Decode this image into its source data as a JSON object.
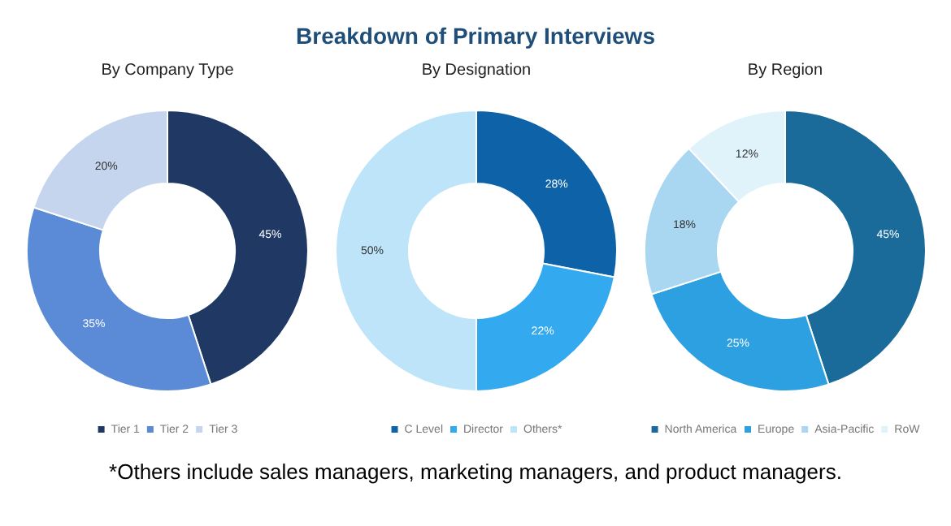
{
  "chart_data": [
    {
      "type": "donut",
      "subtitle": "By Company Type",
      "categories": [
        "Tier 1",
        "Tier 2",
        "Tier 3"
      ],
      "values": [
        45,
        35,
        20
      ],
      "value_labels": [
        "45%",
        "35%",
        "20%"
      ],
      "colors": [
        "#1f3864",
        "#5b8bd6",
        "#c5d5ee"
      ],
      "legend": "bottom"
    },
    {
      "type": "donut",
      "title": "Breakdown of Primary Interviews",
      "subtitle": "By Designation",
      "categories": [
        "C Level",
        "Director",
        "Others*"
      ],
      "values": [
        28,
        22,
        50
      ],
      "value_labels": [
        "28%",
        "22%",
        "50%"
      ],
      "colors": [
        "#0e63a8",
        "#33aaf0",
        "#bde4f8"
      ],
      "legend": "bottom",
      "annotations": [
        "*Others include sales managers, marketing managers, and product managers."
      ]
    },
    {
      "type": "donut",
      "subtitle": "By Region",
      "categories": [
        "North America",
        "Europe",
        "Asia-Pacific",
        "RoW"
      ],
      "values": [
        45,
        25,
        18,
        12
      ],
      "value_labels": [
        "45%",
        "25%",
        "18%",
        "12%"
      ],
      "colors": [
        "#1b6b9a",
        "#2ca0e0",
        "#a9d6f0",
        "#e0f2fa"
      ],
      "legend": "bottom"
    }
  ]
}
